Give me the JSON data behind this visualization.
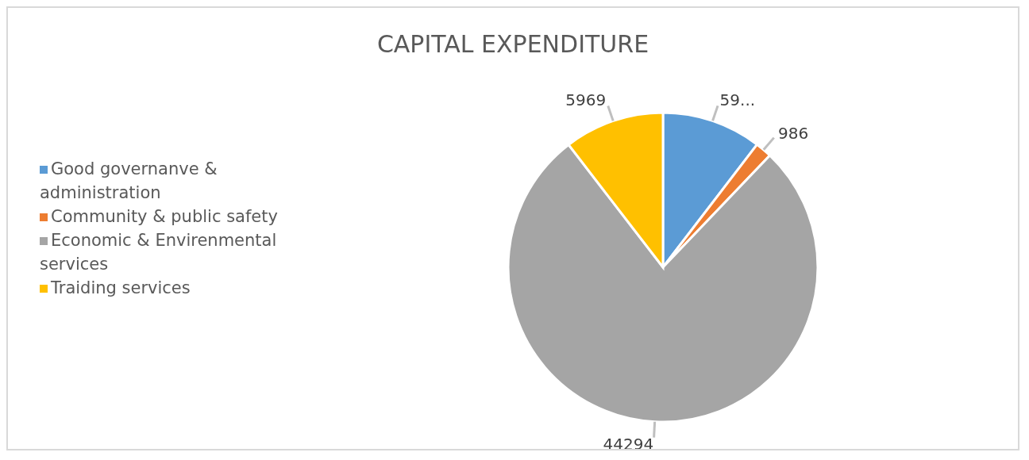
{
  "chart_data": {
    "type": "pie",
    "title": "CAPITAL EXPENDITURE",
    "categories": [
      "Good governanve & administration",
      "Community & public safety",
      "Economic & Envirenmental services",
      "Traiding services"
    ],
    "values": [
      5950,
      986,
      44294,
      5969
    ],
    "value_labels": [
      "59...",
      "986",
      "44294",
      "5969"
    ],
    "colors": [
      "#5b9bd5",
      "#ed7d31",
      "#a5a5a5",
      "#ffc000"
    ],
    "legend": "left"
  }
}
